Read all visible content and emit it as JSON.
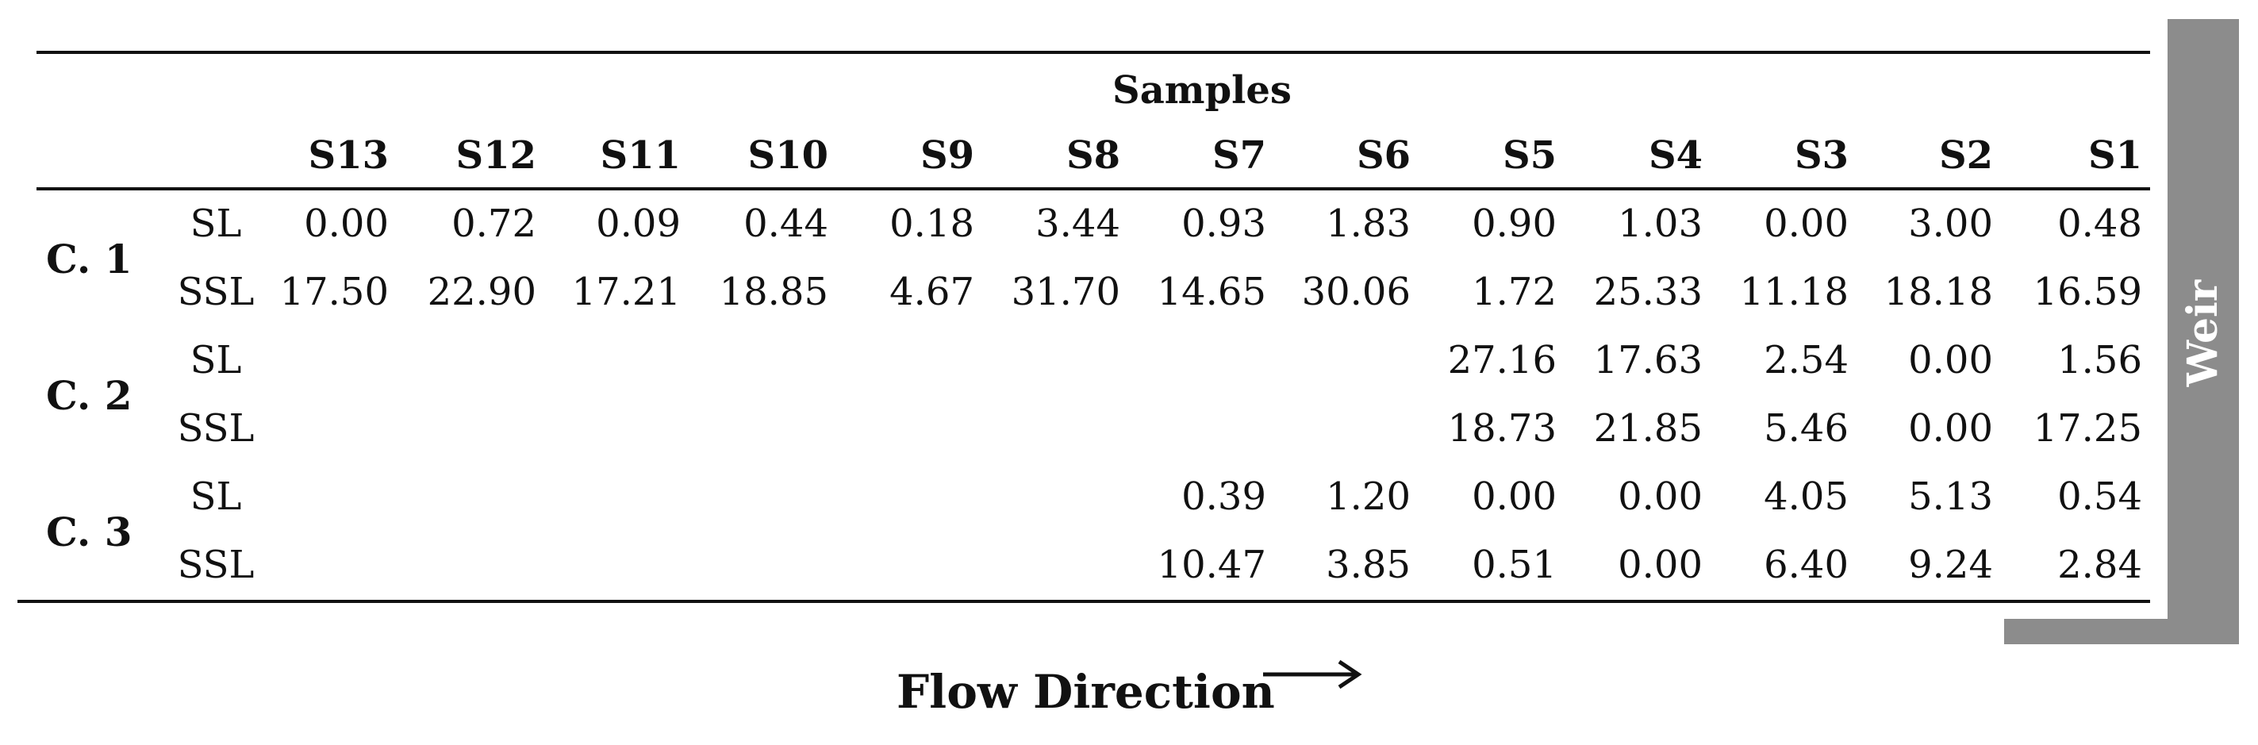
{
  "header": {
    "group_label": "Samples",
    "columns": [
      "S13",
      "S12",
      "S11",
      "S10",
      "S9",
      "S8",
      "S7",
      "S6",
      "S5",
      "S4",
      "S3",
      "S2",
      "S1"
    ]
  },
  "groups": [
    {
      "label": "C. 1",
      "rows": [
        {
          "label": "SL",
          "values": [
            "0.00",
            "0.72",
            "0.09",
            "0.44",
            "0.18",
            "3.44",
            "0.93",
            "1.83",
            "0.90",
            "1.03",
            "0.00",
            "3.00",
            "0.48"
          ]
        },
        {
          "label": "SSL",
          "values": [
            "17.50",
            "22.90",
            "17.21",
            "18.85",
            "4.67",
            "31.70",
            "14.65",
            "30.06",
            "1.72",
            "25.33",
            "11.18",
            "18.18",
            "16.59"
          ]
        }
      ]
    },
    {
      "label": "C. 2",
      "rows": [
        {
          "label": "SL",
          "values": [
            "",
            "",
            "",
            "",
            "",
            "",
            "",
            "",
            "27.16",
            "17.63",
            "2.54",
            "0.00",
            "1.56"
          ]
        },
        {
          "label": "SSL",
          "values": [
            "",
            "",
            "",
            "",
            "",
            "",
            "",
            "",
            "18.73",
            "21.85",
            "5.46",
            "0.00",
            "17.25"
          ]
        }
      ]
    },
    {
      "label": "C. 3",
      "rows": [
        {
          "label": "SL",
          "values": [
            "",
            "",
            "",
            "",
            "",
            "",
            "0.39",
            "1.20",
            "0.00",
            "0.00",
            "4.05",
            "5.13",
            "0.54"
          ]
        },
        {
          "label": "SSL",
          "values": [
            "",
            "",
            "",
            "",
            "",
            "",
            "10.47",
            "3.85",
            "0.51",
            "0.00",
            "6.40",
            "9.24",
            "2.84"
          ]
        }
      ]
    }
  ],
  "weir_label": "Weir",
  "flow_label": "Flow Direction"
}
